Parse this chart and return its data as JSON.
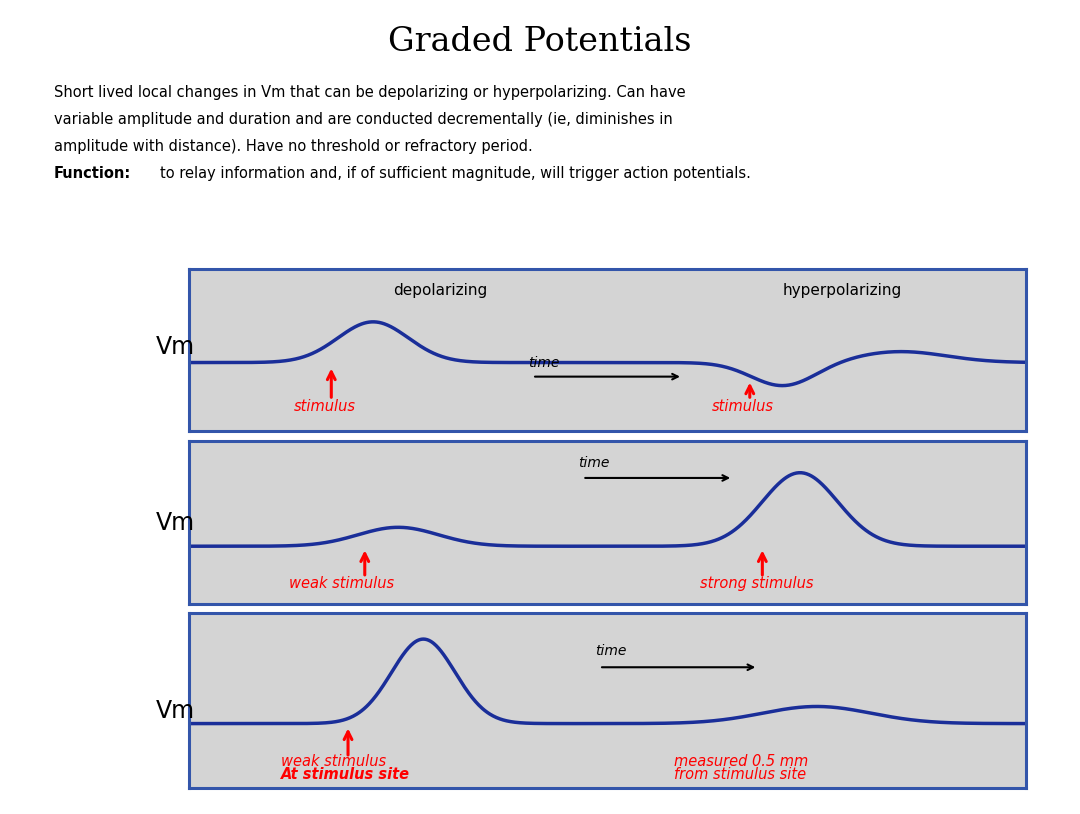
{
  "title": "Graded Potentials",
  "title_fontsize": 24,
  "bg_color": "#ffffff",
  "panel_bg_color": "#d4d4d4",
  "panel_border_color": "#3355aa",
  "curve_color": "#1a2e99",
  "curve_lw": 2.5,
  "text_lines": [
    "Short lived local changes in Vm that can be depolarizing or hyperpolarizing. Can have",
    "variable amplitude and duration and are conducted decrementally (ie, diminishes in",
    "amplitude with distance). Have no threshold or refractory period. ",
    "to relay information and, if of sufficient magnitude, will trigger action potentials."
  ],
  "bold_word": "Function:",
  "panel1_labels": [
    "depolarizing",
    "hyperpolarizing",
    "stimulus",
    "stimulus",
    "time"
  ],
  "panel2_labels": [
    "weak stimulus",
    "strong stimulus",
    "time"
  ],
  "panel3_labels": [
    "weak stimulus",
    "At stimulus site",
    "measured 0.5 mm",
    "from stimulus site",
    "time"
  ]
}
